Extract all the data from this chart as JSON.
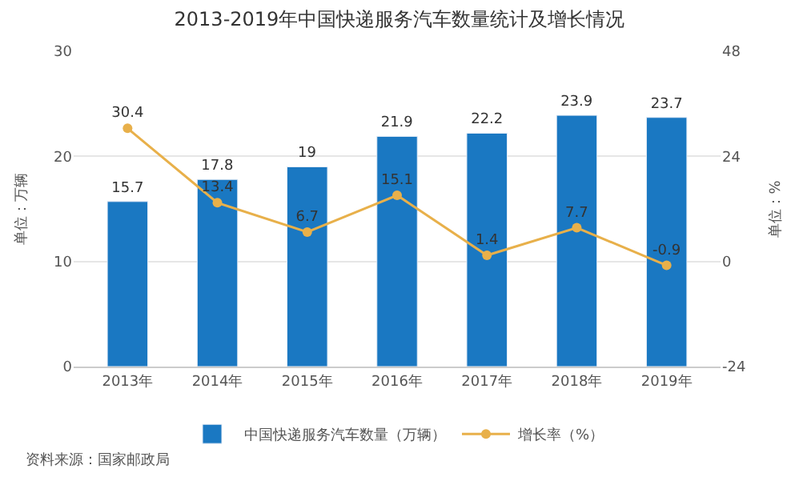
{
  "chart_data": {
    "type": "bar",
    "title": "2013-2019年中国快递服务汽车数量统计及增长情况",
    "categories": [
      "2013年",
      "2014年",
      "2015年",
      "2016年",
      "2017年",
      "2018年",
      "2019年"
    ],
    "series": [
      {
        "name": "中国快递服务汽车数量（万辆）",
        "color": "#1a78c2",
        "values": [
          15.7,
          17.8,
          19,
          21.9,
          22.2,
          23.9,
          23.7
        ]
      },
      {
        "name": "增长率（%）",
        "type": "line",
        "axis": "y2",
        "color": "#e8b04a",
        "marker": "circle",
        "values": [
          30.4,
          13.4,
          6.7,
          15.1,
          1.4,
          7.7,
          -0.9
        ]
      }
    ],
    "ylabel": "单位：万辆",
    "y2label": "单位：%",
    "ylim": [
      0,
      30
    ],
    "yticks": [
      0,
      10,
      20,
      30
    ],
    "y2lim": [
      -24,
      48
    ],
    "y2ticks": [
      -24,
      0,
      24,
      48
    ],
    "grid": "y",
    "legend": "bottom",
    "data_labels": true,
    "annotations": [
      "资料来源：国家邮政局"
    ]
  }
}
